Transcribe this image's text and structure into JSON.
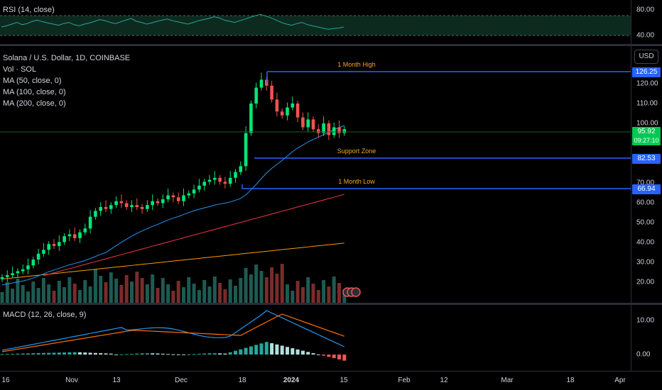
{
  "rsi_pane": {
    "legend": "RSI (14, close)",
    "levels": [
      "80.00",
      "40.00"
    ],
    "values": [
      50,
      52,
      55,
      58,
      54,
      56,
      60,
      62,
      59,
      57,
      55,
      53,
      56,
      58,
      54,
      52,
      55,
      57,
      60,
      63,
      61,
      58,
      56,
      59,
      62,
      65,
      60,
      58,
      55,
      57,
      60,
      62,
      64,
      61,
      59,
      57,
      55,
      58,
      61,
      63,
      65,
      68,
      66,
      62,
      60,
      58,
      61,
      64,
      67,
      70,
      72,
      69,
      66,
      62,
      58,
      55,
      53,
      56,
      58,
      54,
      52,
      50,
      48,
      46,
      47,
      48,
      50
    ]
  },
  "main_pane": {
    "legend": {
      "symbol": "Solana / U.S. Dollar, 1D, COINBASE",
      "volume": "Vol · SOL",
      "ma50": "MA (50, close, 0)",
      "ma100": "MA (100, close, 0)",
      "ma200": "MA (200, close, 0)"
    },
    "currency_button": "USD",
    "price_labels": [
      "120.00",
      "110.00",
      "100.00",
      "70.00",
      "60.00",
      "50.00",
      "40.00",
      "30.00",
      "20.00"
    ],
    "price_tags": {
      "month_high": "126.25",
      "current_price": "95.92",
      "countdown": "09:27:10",
      "support": "82.53",
      "month_low": "66.94"
    },
    "annotations": {
      "month_high": "1 Month High",
      "support_zone": "Support Zone",
      "month_low": "1 Month Low"
    },
    "colors": {
      "up": "#26a69a",
      "candle_up": "#00e676",
      "down": "#ef5350",
      "level_line": "#2962ff",
      "ma50": "#2196f3",
      "ma100": "#f23645",
      "ma200": "#ff9800",
      "annotation": "#f5a623"
    }
  },
  "macd_pane": {
    "legend": "MACD (12, 26, close, 9)",
    "levels": [
      "10.00",
      "0.00"
    ]
  },
  "time_axis": {
    "labels": [
      {
        "text": "16",
        "bold": false
      },
      {
        "text": "Nov",
        "bold": false
      },
      {
        "text": "13",
        "bold": false
      },
      {
        "text": "Dec",
        "bold": false
      },
      {
        "text": "18",
        "bold": false
      },
      {
        "text": "2024",
        "bold": true
      },
      {
        "text": "15",
        "bold": false
      },
      {
        "text": "Feb",
        "bold": false
      },
      {
        "text": "12",
        "bold": false
      },
      {
        "text": "Mar",
        "bold": false
      },
      {
        "text": "18",
        "bold": false
      },
      {
        "text": "Apr",
        "bold": false
      }
    ]
  },
  "chart_data": {
    "type": "line",
    "title": "Solana / U.S. Dollar, 1D, COINBASE",
    "candles_close": [
      21,
      22,
      23,
      24,
      25,
      27,
      30,
      33,
      35,
      38,
      37,
      39,
      42,
      43,
      41,
      44,
      46,
      52,
      55,
      57,
      56,
      58,
      60,
      59,
      57,
      58,
      57,
      56,
      58,
      60,
      59,
      61,
      63,
      62,
      60,
      63,
      64,
      66,
      68,
      70,
      71,
      72,
      70,
      69,
      72,
      75,
      78,
      95,
      110,
      118,
      122,
      119,
      112,
      106,
      104,
      108,
      110,
      103,
      98,
      102,
      97,
      95,
      100,
      94,
      98,
      95,
      97
    ]
  }
}
